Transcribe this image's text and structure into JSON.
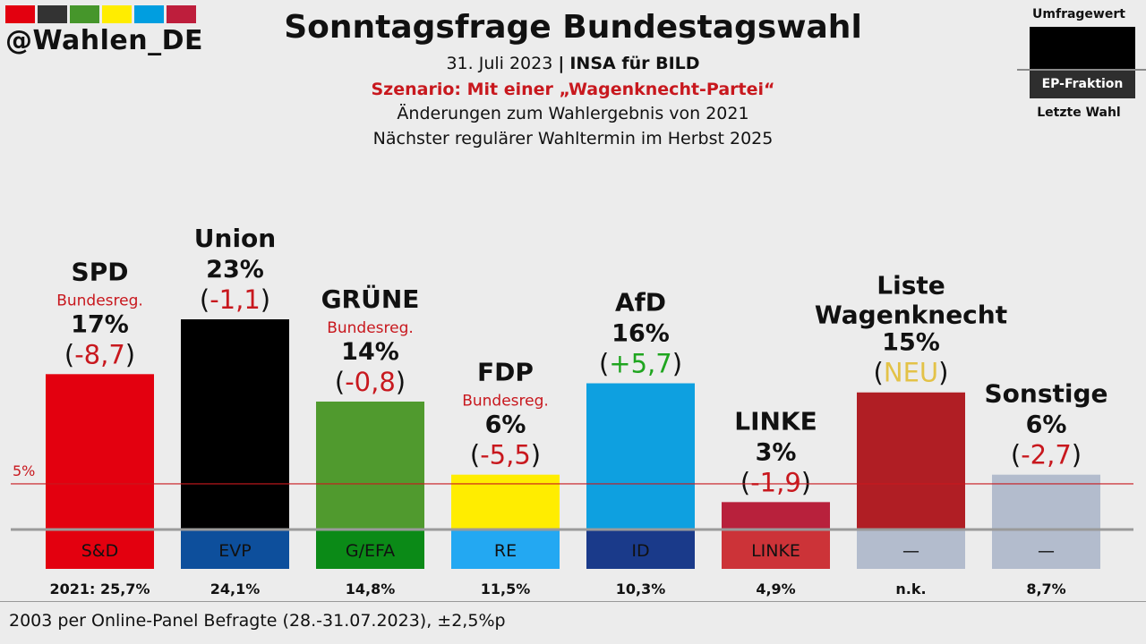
{
  "brand": {
    "handle": "@Wahlen_DE",
    "stripe_colors": [
      "#e3000f",
      "#333333",
      "#46962b",
      "#ffed00",
      "#009ee0",
      "#be1e3c"
    ]
  },
  "header": {
    "title": "Sonntagsfrage Bundestagswahl",
    "date": "31. Juli 2023",
    "separator": "|",
    "institute": "INSA für BILD",
    "scenario": "Szenario: Mit einer „Wagenknecht-Partei“",
    "note_changes": "Änderungen zum Wahlergebnis von 2021",
    "note_next": "Nächster regulärer Wahltermin im Herbst 2025"
  },
  "legend": {
    "top_label": "Umfragewert",
    "ep_label": "EP-Fraktion",
    "last_label": "Letzte Wahl"
  },
  "footer": {
    "text": "2003 per Online-Panel Befragte (28.-31.07.2023), ±2,5%p"
  },
  "chart_data": {
    "type": "bar",
    "ylim": [
      0,
      23
    ],
    "threshold": {
      "value": 5,
      "label": "5%",
      "color": "#c8181e"
    },
    "categories": [
      "SPD",
      "Union",
      "GRÜNE",
      "FDP",
      "AfD",
      "LINKE",
      "Liste Wagenknecht",
      "Sonstige"
    ],
    "bars": [
      {
        "party": "SPD",
        "value": 17,
        "value_label": "17%",
        "government_label": "Bundesreg.",
        "change": "-8,7",
        "change_color": "#c8181e",
        "color": "#e3000f",
        "ep_group": "S&D",
        "ep_color": "#e3000f",
        "ep_text_color": "#111111",
        "last_election": "2021: 25,7%"
      },
      {
        "party": "Union",
        "value": 23,
        "value_label": "23%",
        "government_label": "",
        "change": "-1,1",
        "change_color": "#c8181e",
        "color": "#000000",
        "ep_group": "EVP",
        "ep_color": "#0d4f9c",
        "ep_text_color": "#111111",
        "last_election": "24,1%"
      },
      {
        "party": "GRÜNE",
        "value": 14,
        "value_label": "14%",
        "government_label": "Bundesreg.",
        "change": "-0,8",
        "change_color": "#c8181e",
        "color": "#509a2e",
        "ep_group": "G/EFA",
        "ep_color": "#0b8a17",
        "ep_text_color": "#111111",
        "last_election": "14,8%"
      },
      {
        "party": "FDP",
        "value": 6,
        "value_label": "6%",
        "government_label": "Bundesreg.",
        "change": "-5,5",
        "change_color": "#c8181e",
        "color": "#ffed00",
        "ep_group": "RE",
        "ep_color": "#23a8f2",
        "ep_text_color": "#111111",
        "last_election": "11,5%"
      },
      {
        "party": "AfD",
        "value": 16,
        "value_label": "16%",
        "government_label": "",
        "change": "+5,7",
        "change_color": "#1fa51f",
        "color": "#0ea0e0",
        "ep_group": "ID",
        "ep_color": "#1a3a8a",
        "ep_text_color": "#111111",
        "last_election": "10,3%"
      },
      {
        "party": "LINKE",
        "value": 3,
        "value_label": "3%",
        "government_label": "",
        "change": "-1,9",
        "change_color": "#c8181e",
        "color": "#b8213c",
        "ep_group": "LINKE",
        "ep_color": "#cc3338",
        "ep_text_color": "#111111",
        "last_election": "4,9%"
      },
      {
        "party": "Liste Wagenknecht",
        "value": 15,
        "value_label": "15%",
        "government_label": "",
        "change": "NEU",
        "change_color": "#e3c247",
        "color": "#b01e24",
        "ep_group": "—",
        "ep_color": "#b3bccd",
        "ep_text_color": "#111111",
        "last_election": "n.k."
      },
      {
        "party": "Sonstige",
        "value": 6,
        "value_label": "6%",
        "government_label": "",
        "change": "-2,7",
        "change_color": "#c8181e",
        "color": "#b3bccd",
        "ep_group": "—",
        "ep_color": "#b3bccd",
        "ep_text_color": "#111111",
        "last_election": "8,7%"
      }
    ]
  }
}
